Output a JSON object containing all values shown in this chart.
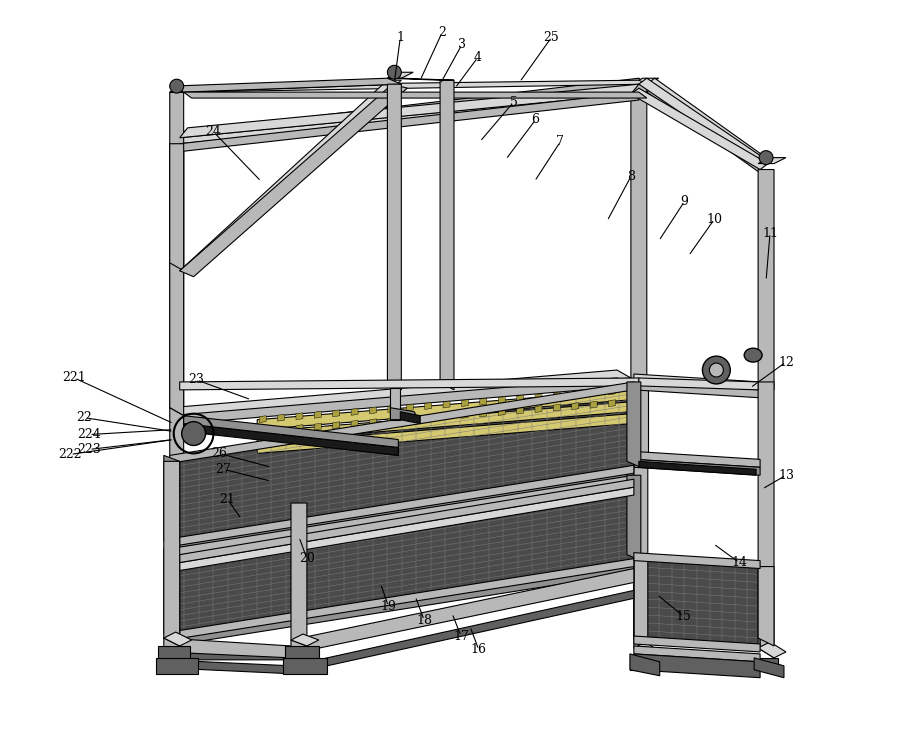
{
  "figure_width": 9.05,
  "figure_height": 7.47,
  "dpi": 100,
  "bg_color": "#ffffff",
  "lc": "#000000",
  "c_light": "#d8d8d8",
  "c_mid": "#b8b8b8",
  "c_dark": "#909090",
  "c_vdark": "#606060",
  "c_mesh": "#5a5a5a",
  "c_mesh_line": "#8a8a8a",
  "c_black": "#1a1a1a"
}
